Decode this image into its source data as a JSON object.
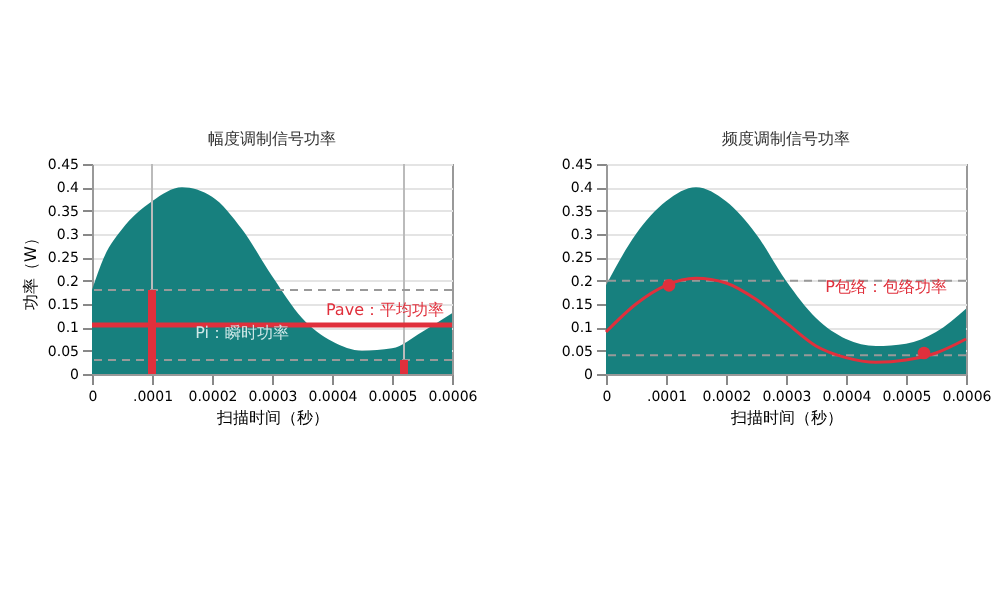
{
  "chart_data": [
    {
      "type": "area",
      "title": "幅度调制信号功率",
      "xlabel": "扫描时间（秒）",
      "ylabel": "功率（W）",
      "xlim": [
        0,
        0.0006
      ],
      "xticks": [
        0,
        {
          "value": 0.0001,
          "label": ".0001"
        },
        0.0002,
        0.0003,
        0.0004,
        0.0005,
        0.0006
      ],
      "ylim": [
        0,
        0.45
      ],
      "yticks": [
        0,
        0.05,
        0.1,
        0.15,
        0.2,
        0.25,
        0.3,
        0.35,
        0.4,
        0.45
      ],
      "grid": "y",
      "series": [
        {
          "color": "#17807e",
          "x": [
            0,
            2e-05,
            5e-05,
            0.0001,
            0.00015,
            0.0002,
            0.00025,
            0.0003,
            0.00035,
            0.0004,
            0.00045,
            0.0005,
            0.00055,
            0.0006
          ],
          "values": [
            0.18,
            0.25,
            0.31,
            0.37,
            0.4,
            0.38,
            0.31,
            0.21,
            0.12,
            0.07,
            0.05,
            0.055,
            0.09,
            0.13
          ]
        },
        {
          "type": "bar",
          "color": "#e0303c",
          "x": [
            0.0001,
            0.00052
          ],
          "values": [
            0.18,
            0.03
          ]
        }
      ],
      "ref_lines": [
        {
          "axis": "x",
          "value": 0.0001,
          "color": "#bbbbbb",
          "line_style": "solid"
        },
        {
          "axis": "x",
          "value": 0.00052,
          "color": "#bbbbbb",
          "line_style": "solid"
        },
        {
          "axis": "y",
          "value": 0.18,
          "color": "#999999",
          "line_style": "dashed"
        },
        {
          "axis": "y",
          "value": 0.03,
          "color": "#999999",
          "line_style": "dashed"
        },
        {
          "axis": "y",
          "value": 0.105,
          "color": "#e0303c",
          "line_style": "solid",
          "label": "Pave：平均功率"
        }
      ],
      "annotations": [
        "Pi：瞬时功率"
      ]
    },
    {
      "type": "area",
      "title": "频度调制信号功率",
      "xlabel": "扫描时间（秒）",
      "xlim": [
        0,
        0.0006
      ],
      "xticks": [
        0,
        {
          "value": 0.0001,
          "label": ".0001"
        },
        0.0002,
        0.0003,
        0.0004,
        0.0005,
        0.0006
      ],
      "ylim": [
        0,
        0.45
      ],
      "yticks": [
        0,
        0.05,
        0.1,
        0.15,
        0.2,
        0.25,
        0.3,
        0.35,
        0.4,
        0.45
      ],
      "grid": "y",
      "series": [
        {
          "color": "#17807e",
          "x": [
            0,
            5e-05,
            0.0001,
            0.00015,
            0.0002,
            0.00025,
            0.0003,
            0.00035,
            0.0004,
            0.00045,
            0.0005,
            0.00055,
            0.0006
          ],
          "values": [
            0.19,
            0.3,
            0.37,
            0.4,
            0.37,
            0.3,
            0.2,
            0.12,
            0.075,
            0.06,
            0.065,
            0.09,
            0.14
          ]
        },
        {
          "type": "line",
          "color": "#e0303c",
          "x": [
            0,
            5e-05,
            0.0001,
            0.00015,
            0.0002,
            0.00025,
            0.0003,
            0.00035,
            0.0004,
            0.00045,
            0.0005,
            0.00055,
            0.0006
          ],
          "values": [
            0.09,
            0.15,
            0.19,
            0.205,
            0.195,
            0.16,
            0.11,
            0.06,
            0.035,
            0.025,
            0.03,
            0.045,
            0.075
          ]
        },
        {
          "type": "scatter",
          "color": "#e0303c",
          "marker": "circle",
          "x": [
            0.000105,
            0.00053
          ],
          "values": [
            0.19,
            0.045
          ]
        }
      ],
      "ref_lines": [
        {
          "axis": "y",
          "value": 0.2,
          "color": "#999999",
          "line_style": "dashed"
        },
        {
          "axis": "y",
          "value": 0.04,
          "color": "#999999",
          "line_style": "dashed"
        }
      ],
      "annotations": [
        "P包络：包络功率"
      ]
    }
  ]
}
